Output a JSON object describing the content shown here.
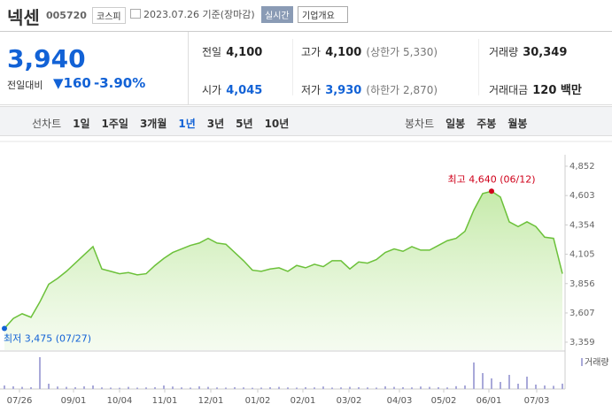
{
  "header": {
    "name": "넥센",
    "code": "005720",
    "market": "코스피",
    "date": "2023.07.26 기준(장마감)",
    "realtime": "실시간",
    "company": "기업개요"
  },
  "price": {
    "current": "3,940",
    "change_label": "전일대비",
    "change": "160",
    "change_rate": "-3.90%"
  },
  "quote": {
    "rows": [
      [
        {
          "label": "전일",
          "value": "4,100"
        },
        {
          "label": "고가",
          "value": "4,100",
          "sub": "(상한가 5,330)"
        },
        {
          "label": "거래량",
          "value": "30,349"
        }
      ],
      [
        {
          "label": "시가",
          "value": "4,045"
        },
        {
          "label": "저가",
          "value": "3,930",
          "sub": "(하한가 2,870)"
        },
        {
          "label": "거래대금",
          "value": "120 백만"
        }
      ]
    ]
  },
  "tabs": {
    "line_label": "선차트",
    "line": [
      "1일",
      "1주일",
      "3개월",
      "1년",
      "3년",
      "5년",
      "10년"
    ],
    "selected": 3,
    "candle_label": "봉차트",
    "candle": [
      "일봉",
      "주봉",
      "월봉"
    ]
  },
  "chart_data": {
    "type": "area",
    "color": "#6cc13a",
    "values": [
      3475,
      3560,
      3600,
      3570,
      3700,
      3850,
      3900,
      3960,
      4030,
      4100,
      4170,
      3980,
      3960,
      3940,
      3950,
      3930,
      3940,
      4010,
      4070,
      4120,
      4150,
      4180,
      4200,
      4240,
      4200,
      4190,
      4120,
      4050,
      3970,
      3960,
      3980,
      3990,
      3960,
      4010,
      3990,
      4020,
      4000,
      4050,
      4050,
      3980,
      4040,
      4030,
      4060,
      4120,
      4150,
      4130,
      4170,
      4140,
      4140,
      4180,
      4220,
      4240,
      4300,
      4480,
      4620,
      4640,
      4590,
      4380,
      4340,
      4380,
      4340,
      4250,
      4240,
      3940
    ],
    "volume_label": "거래량",
    "volume": [
      20000,
      15000,
      12000,
      10000,
      180000,
      30000,
      14000,
      12000,
      10000,
      15000,
      20000,
      9000,
      8000,
      7000,
      12000,
      8000,
      9000,
      10000,
      20000,
      14000,
      9000,
      8000,
      15000,
      12000,
      9000,
      8000,
      10000,
      9000,
      7000,
      8000,
      10000,
      12000,
      9000,
      8000,
      10000,
      9000,
      14000,
      8000,
      9000,
      12000,
      10000,
      9000,
      8000,
      15000,
      12000,
      10000,
      9000,
      14000,
      12000,
      10000,
      9000,
      16000,
      20000,
      150000,
      90000,
      60000,
      40000,
      80000,
      30000,
      70000,
      25000,
      20000,
      18000,
      30349
    ],
    "ylim": [
      3359,
      4852
    ],
    "yticks": [
      {
        "value": 3359,
        "label": "3,359"
      },
      {
        "value": 3607,
        "label": "3,607"
      },
      {
        "value": 3856,
        "label": "3,856"
      },
      {
        "value": 4105,
        "label": "4,105"
      },
      {
        "value": 4354,
        "label": "4,354"
      },
      {
        "value": 4603,
        "label": "4,603"
      },
      {
        "value": 4852,
        "label": "4,852"
      }
    ],
    "xticks": [
      {
        "value": 1.7,
        "label": "07/26"
      },
      {
        "value": 7.8,
        "label": "09/01"
      },
      {
        "value": 13,
        "label": "10/04"
      },
      {
        "value": 18.1,
        "label": "11/01"
      },
      {
        "value": 23.3,
        "label": "12/01"
      },
      {
        "value": 28.6,
        "label": "01/02"
      },
      {
        "value": 33.7,
        "label": "02/01"
      },
      {
        "value": 38.9,
        "label": "03/02"
      },
      {
        "value": 44.6,
        "label": "04/03"
      },
      {
        "value": 49.6,
        "label": "05/02"
      },
      {
        "value": 54.7,
        "label": "06/01"
      },
      {
        "value": 60.1,
        "label": "07/03"
      }
    ],
    "annotations": [
      {
        "index": 55,
        "text": "최고 4,640 (06/12)",
        "color": "#d0021b"
      },
      {
        "index": 0,
        "text": "최저 3,475 (07/27)",
        "color": "#1262d6"
      }
    ]
  }
}
